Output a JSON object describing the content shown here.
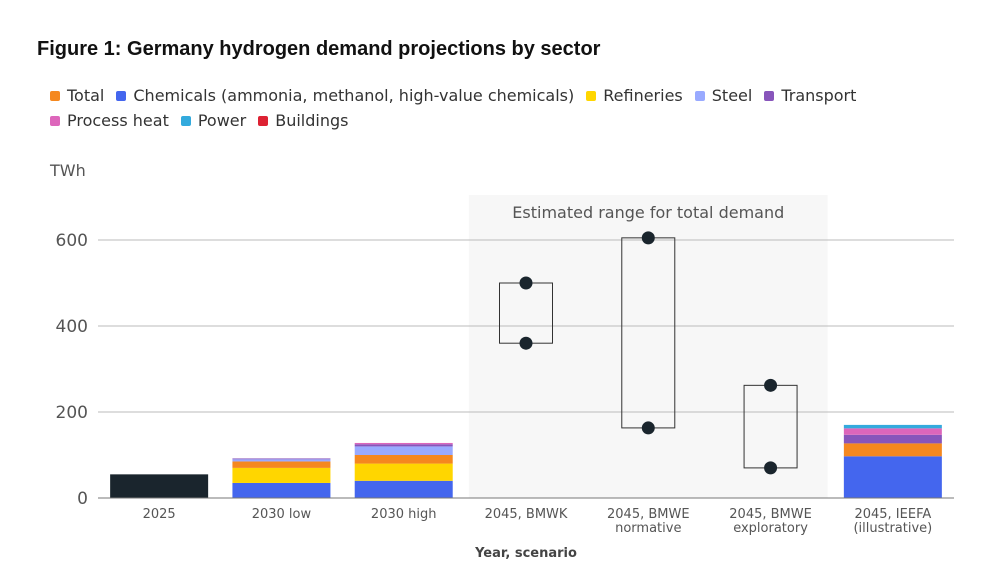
{
  "figure": {
    "title": "Figure 1: Germany hydrogen demand projections by sector",
    "unit": "TWh"
  },
  "legend": [
    {
      "label": "Total",
      "color": "#f5881f"
    },
    {
      "label": "Chemicals (ammonia, methanol, high-value chemicals)",
      "color": "#4466ee"
    },
    {
      "label": "Refineries",
      "color": "#ffd600"
    },
    {
      "label": "Steel",
      "color": "#99aaff"
    },
    {
      "label": "Transport",
      "color": "#8855bb"
    },
    {
      "label": "Process heat",
      "color": "#dd66bb"
    },
    {
      "label": "Power",
      "color": "#33aadd"
    },
    {
      "label": "Buildings",
      "color": "#dd2233"
    }
  ],
  "chart_data": {
    "type": "bar",
    "title": "Figure 1: Germany hydrogen demand projections by sector",
    "ylabel": "TWh",
    "xlabel": "Year, scenario",
    "ylim": [
      0,
      700
    ],
    "yticks": [
      0,
      200,
      400,
      600
    ],
    "grid": true,
    "legend_position": "top",
    "categories": [
      "2025",
      "2030 low",
      "2030 high",
      "2045, BMWK",
      "2045, BMWE normative",
      "2045, BMWE exploratory",
      "2045, IEEFA (illustrative)"
    ],
    "category_label_lines": [
      [
        "2025"
      ],
      [
        "2030 low"
      ],
      [
        "2030 high"
      ],
      [
        "2045, BMWK"
      ],
      [
        "2045, BMWE",
        "normative"
      ],
      [
        "2045, BMWE",
        "exploratory"
      ],
      [
        "2045, IEEFA",
        "(illustrative)"
      ]
    ],
    "single_bar": {
      "category": "2025",
      "value": 55,
      "color": "#1a252d"
    },
    "series": [
      {
        "name": "Chemicals (ammonia, methanol, high-value chemicals)",
        "color": "#4466ee",
        "values": [
          0,
          35,
          40,
          0,
          0,
          0,
          97
        ]
      },
      {
        "name": "Refineries",
        "color": "#ffd600",
        "values": [
          0,
          35,
          40,
          0,
          0,
          0,
          0
        ]
      },
      {
        "name": "Total",
        "color": "#f5881f",
        "values": [
          0,
          15,
          20,
          0,
          0,
          0,
          30
        ]
      },
      {
        "name": "Steel",
        "color": "#99aaff",
        "values": [
          0,
          5,
          20,
          0,
          0,
          0,
          0
        ]
      },
      {
        "name": "Transport",
        "color": "#8855bb",
        "values": [
          0,
          2,
          5,
          0,
          0,
          0,
          20
        ]
      },
      {
        "name": "Process heat",
        "color": "#dd66bb",
        "values": [
          0,
          0,
          3,
          0,
          0,
          0,
          15
        ]
      },
      {
        "name": "Power",
        "color": "#33aadd",
        "values": [
          0,
          0,
          0,
          0,
          0,
          0,
          8
        ]
      },
      {
        "name": "Buildings",
        "color": "#dd2233",
        "values": [
          0,
          0,
          0,
          0,
          0,
          0,
          0
        ]
      }
    ],
    "ranges": [
      {
        "category": "2045, BMWK",
        "low": 360,
        "high": 500
      },
      {
        "category": "2045, BMWE normative",
        "low": 163,
        "high": 605
      },
      {
        "category": "2045, BMWE exploratory",
        "low": 70,
        "high": 262
      }
    ],
    "annotation": {
      "text": "Estimated range for total demand",
      "from_category": "2045, BMWK",
      "to_category": "2045, BMWE exploratory",
      "shade_color": "#f7f7f7"
    }
  }
}
